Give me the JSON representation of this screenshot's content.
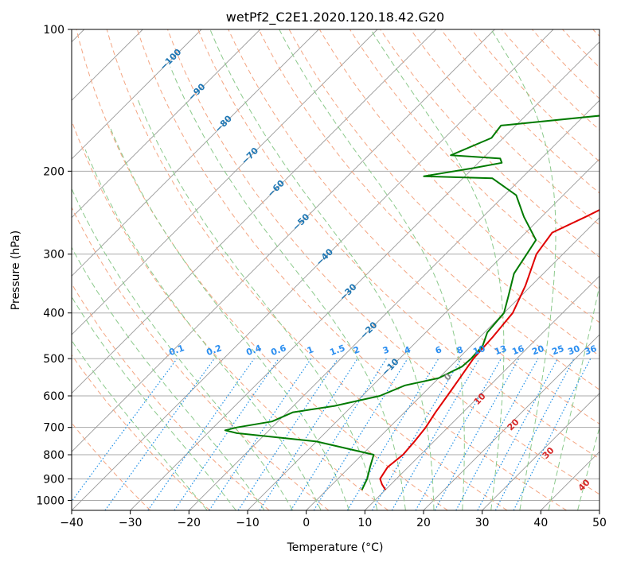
{
  "chart_data": {
    "type": "line",
    "title": "wetPf2_C2E1.2020.120.18.42.G20",
    "xlabel": "Temperature (°C)",
    "ylabel": "Pressure (hPa)",
    "xlim": [
      -40,
      50
    ],
    "ylim": [
      1050,
      100
    ],
    "y_scale": "log",
    "x_ticks": [
      -40,
      -30,
      -20,
      -10,
      0,
      10,
      20,
      30,
      40,
      50
    ],
    "x_tick_labels": [
      "−40",
      "−30",
      "−20",
      "−10",
      "0",
      "10",
      "20",
      "30",
      "40",
      "50"
    ],
    "y_ticks": [
      100,
      200,
      300,
      400,
      500,
      600,
      700,
      800,
      900,
      1000
    ],
    "y_tick_labels": [
      "100",
      "200",
      "300",
      "400",
      "500",
      "600",
      "700",
      "800",
      "900",
      "1000"
    ],
    "grid": true,
    "series": [
      {
        "color": "#e00000",
        "points": [
          [
            10,
            950
          ],
          [
            8.5,
            925
          ],
          [
            7.2,
            900
          ],
          [
            6.5,
            850
          ],
          [
            7,
            800
          ],
          [
            6.7,
            750
          ],
          [
            6.2,
            700
          ],
          [
            5.3,
            650
          ],
          [
            4.5,
            600
          ],
          [
            3.6,
            550
          ],
          [
            2.6,
            500
          ],
          [
            2.2,
            450
          ],
          [
            1.5,
            400
          ],
          [
            -1,
            350
          ],
          [
            -4.5,
            300
          ],
          [
            -5.5,
            270
          ],
          [
            -2.5,
            250
          ],
          [
            0.5,
            230
          ],
          [
            5,
            210
          ],
          [
            9,
            195
          ],
          [
            15.5,
            175
          ],
          [
            19.5,
            160
          ],
          [
            21.5,
            140
          ],
          [
            22.5,
            130
          ],
          [
            25,
            120
          ],
          [
            27.5,
            110
          ],
          [
            30.5,
            100
          ]
        ]
      },
      {
        "color": "#007a00",
        "points": [
          [
            6,
            950
          ],
          [
            5.5,
            925
          ],
          [
            5,
            900
          ],
          [
            3.5,
            850
          ],
          [
            2,
            800
          ],
          [
            -10,
            750
          ],
          [
            -25,
            720
          ],
          [
            -27.5,
            710
          ],
          [
            -26,
            700
          ],
          [
            -21,
            680
          ],
          [
            -19,
            650
          ],
          [
            -13,
            630
          ],
          [
            -7,
            600
          ],
          [
            -4.5,
            570
          ],
          [
            0,
            550
          ],
          [
            2,
            520
          ],
          [
            2.2,
            500
          ],
          [
            2,
            470
          ],
          [
            0.5,
            440
          ],
          [
            0,
            400
          ],
          [
            -2,
            370
          ],
          [
            -5,
            330
          ],
          [
            -7,
            280
          ],
          [
            -13,
            250
          ],
          [
            -18,
            225
          ],
          [
            -25,
            207
          ],
          [
            -37,
            205
          ],
          [
            -30,
            197
          ],
          [
            -26,
            192
          ],
          [
            -27,
            188
          ],
          [
            -36,
            185
          ],
          [
            -32,
            170
          ],
          [
            -32.5,
            160
          ],
          [
            -8,
            148
          ],
          [
            -7.3,
            140
          ],
          [
            -7.2,
            133
          ],
          [
            -8.5,
            125
          ],
          [
            -6.5,
            120
          ],
          [
            -3.5,
            112
          ],
          [
            -1.5,
            104
          ],
          [
            -1,
            100
          ]
        ]
      }
    ],
    "dry_adiabat_labels": [
      "−100",
      "−90",
      "−80",
      "−70",
      "−60",
      "−50",
      "−40",
      "−30",
      "−20",
      "−10"
    ],
    "moist_adiabat_labels": [
      "0",
      "10",
      "20",
      "30",
      "40"
    ],
    "mixing_ratio_labels": [
      "0.1",
      "0.2",
      "0.4",
      "0.6",
      "1",
      "1.5",
      "2",
      "3",
      "4",
      "6",
      "8",
      "10",
      "13",
      "16",
      "20",
      "25",
      "30",
      "36"
    ]
  },
  "style": {
    "red_line": "#e00000",
    "green_line": "#007a00",
    "dry_adiabat": "#f4a582",
    "moist_adiabat": "#8bc98b",
    "mixing_ratio": "#1e8fe6",
    "isotherm": "#888888",
    "dry_label": "#1f77b4",
    "moist_label": "#d62728",
    "mix_label": "#2b8ef0"
  }
}
